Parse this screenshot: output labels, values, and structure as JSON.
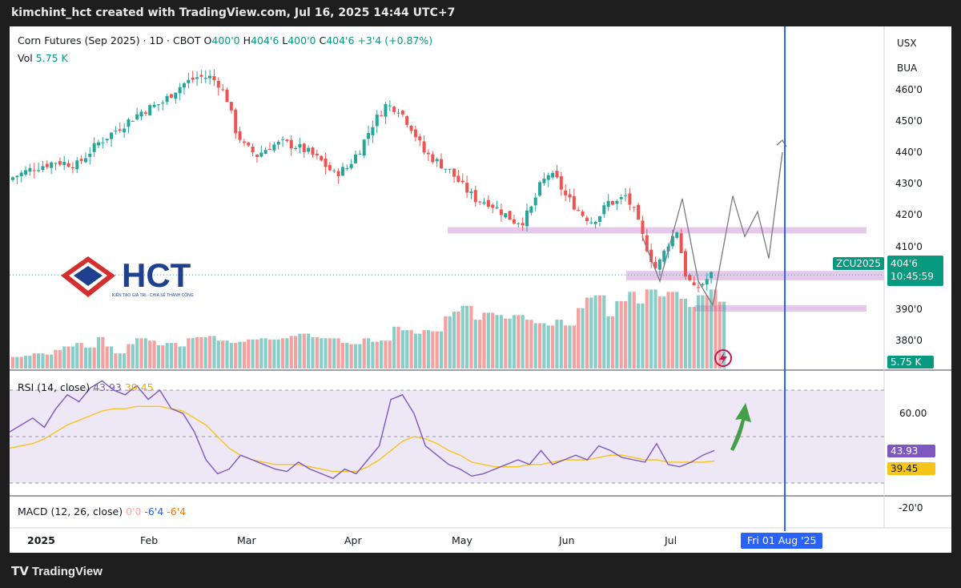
{
  "header": {
    "publisher": "kimchint_hct created with TradingView.com, Jul 16, 2025 14:44 UTC+7"
  },
  "footer": {
    "brand": "TradingView"
  },
  "symbol_legend": {
    "title": "Corn Futures (Sep 2025) · 1D · CBOT",
    "o_label": "O",
    "o": "400'0",
    "h_label": "H",
    "h": "404'6",
    "l_label": "L",
    "l": "400'0",
    "c_label": "C",
    "c": "404'6",
    "change": "+3'4 (+0.87%)"
  },
  "vol_legend": {
    "label": "Vol",
    "value": "5.75 K"
  },
  "currency": {
    "line1": "USX",
    "line2": "BUA"
  },
  "price_tag": {
    "symbol": "ZCU2025",
    "price": "404'6",
    "countdown": "10:45:59"
  },
  "vol_tag": "5.75 K",
  "rsi_legend": {
    "label": "RSI (14, close)",
    "rsi": "43.93",
    "ma": "39.45"
  },
  "rsi_tags": {
    "rsi": "43.93",
    "ma": "39.45"
  },
  "macd_legend": {
    "label": "MACD (12, 26, close)",
    "hist": "0'0",
    "macd": "-6'4",
    "signal": "-6'4"
  },
  "logo": {
    "text": "HCT",
    "tagline": "KIẾN TẠO GIÁ TRỊ - CHIA SẺ THÀNH CÔNG"
  },
  "cursor_date": "Fri 01 Aug '25",
  "colors": {
    "up": "#26a69a",
    "down": "#ef5350",
    "zone": "#e1bee7",
    "rsi": "#7e57c2",
    "rsi_ma": "#f5c518",
    "cursor": "#2962ff",
    "arrow": "#43a047",
    "brand_red": "#d32f2f",
    "brand_blue": "#1f3f8f"
  },
  "chart_data": {
    "type": "candlestick",
    "title": "Corn Futures (Sep 2025) · 1D · CBOT",
    "price_axis": {
      "ticks": [
        "460'0",
        "450'0",
        "440'0",
        "430'0",
        "420'0",
        "410'0",
        "390'0",
        "380'0"
      ],
      "range": [
        374,
        468
      ]
    },
    "x_axis_labels": [
      "2025",
      "Feb",
      "Mar",
      "Apr",
      "May",
      "Jun",
      "Jul"
    ],
    "close_path": [
      [
        0,
        436
      ],
      [
        5,
        439
      ],
      [
        10,
        441
      ],
      [
        15,
        440
      ],
      [
        20,
        447
      ],
      [
        25,
        452
      ],
      [
        30,
        457
      ],
      [
        35,
        460
      ],
      [
        38,
        464
      ],
      [
        40,
        466
      ],
      [
        43,
        468
      ],
      [
        46,
        468
      ],
      [
        48,
        466
      ],
      [
        50,
        461
      ],
      [
        52,
        451
      ],
      [
        54,
        446
      ],
      [
        57,
        443
      ],
      [
        60,
        446
      ],
      [
        63,
        447
      ],
      [
        66,
        446
      ],
      [
        69,
        444
      ],
      [
        72,
        441
      ],
      [
        75,
        437
      ],
      [
        78,
        439
      ],
      [
        81,
        445
      ],
      [
        84,
        453
      ],
      [
        87,
        459
      ],
      [
        90,
        458
      ],
      [
        93,
        452
      ],
      [
        96,
        444
      ],
      [
        99,
        441
      ],
      [
        102,
        438
      ],
      [
        105,
        433
      ],
      [
        108,
        429
      ],
      [
        111,
        428
      ],
      [
        114,
        425
      ],
      [
        117,
        422
      ],
      [
        119,
        422
      ],
      [
        121,
        426
      ],
      [
        123,
        433
      ],
      [
        125,
        437
      ],
      [
        127,
        435
      ],
      [
        129,
        430
      ],
      [
        131,
        427
      ],
      [
        133,
        424
      ],
      [
        135,
        422
      ],
      [
        137,
        424
      ],
      [
        139,
        428
      ],
      [
        141,
        428
      ],
      [
        143,
        430
      ],
      [
        145,
        425
      ],
      [
        147,
        417
      ],
      [
        149,
        410
      ],
      [
        150,
        407
      ],
      [
        151,
        409
      ],
      [
        153,
        415
      ],
      [
        155,
        419
      ],
      [
        157,
        405
      ],
      [
        159,
        400
      ],
      [
        161,
        402
      ],
      [
        163,
        404.75
      ]
    ],
    "volume_K": [
      1.0,
      1.1,
      1.3,
      1.2,
      1.6,
      1.9,
      2.2,
      1.8,
      2.7,
      1.9,
      1.3,
      2.1,
      2.6,
      2.4,
      2.0,
      2.2,
      1.9,
      2.6,
      2.7,
      2.8,
      2.4,
      2.2,
      2.3,
      2.5,
      2.6,
      2.5,
      2.6,
      2.8,
      3.0,
      2.7,
      2.6,
      2.6,
      2.2,
      2.1,
      2.6,
      2.3,
      2.4,
      3.6,
      3.3,
      3.0,
      3.3,
      3.2,
      4.5,
      4.9,
      5.4,
      4.2,
      4.8,
      4.6,
      4.3,
      4.6,
      4.2,
      3.9,
      3.7,
      4.2,
      3.7,
      5.2,
      6.1,
      6.3,
      4.5,
      5.8,
      6.6,
      5.6,
      6.8,
      6.2,
      6.6,
      6.0,
      5.3,
      6.3,
      6.8,
      5.75
    ],
    "rsi": [
      52,
      55,
      58,
      54,
      62,
      68,
      65,
      71,
      74,
      70,
      68,
      72,
      66,
      70,
      62,
      60,
      52,
      40,
      34,
      36,
      42,
      40,
      38,
      36,
      35,
      39,
      36,
      34,
      32,
      36,
      34,
      40,
      46,
      66,
      68,
      60,
      46,
      42,
      38,
      36,
      33,
      34,
      36,
      38,
      40,
      38,
      44,
      38,
      40,
      42,
      40,
      46,
      44,
      41,
      40,
      39,
      47,
      38,
      37,
      39,
      42,
      44
    ],
    "rsi_ma": [
      45,
      46,
      47,
      49,
      52,
      55,
      57,
      59,
      61,
      62,
      62,
      63,
      63,
      63,
      62,
      61,
      58,
      55,
      50,
      45,
      42,
      40,
      39,
      38,
      38,
      38,
      37,
      36,
      35,
      35,
      35,
      37,
      40,
      44,
      48,
      50,
      49,
      47,
      44,
      42,
      39,
      38,
      37,
      37,
      37,
      38,
      38,
      39,
      40,
      40,
      40,
      41,
      42,
      42,
      41,
      40,
      40,
      39,
      39,
      39,
      39,
      39.45
    ],
    "rsi_axis": {
      "ticks": [
        "60.00"
      ],
      "range": [
        20,
        80
      ]
    },
    "macd_axis": {
      "ticks": [
        "-20'0"
      ]
    },
    "zones": [
      [
        418,
        420
      ],
      [
        403,
        406
      ],
      [
        393,
        395
      ]
    ],
    "projection": [
      [
        419,
        40
      ],
      [
        430,
        42
      ],
      [
        417,
        45
      ],
      [
        425,
        47
      ],
      [
        410,
        50
      ],
      [
        444,
        53
      ]
    ]
  }
}
